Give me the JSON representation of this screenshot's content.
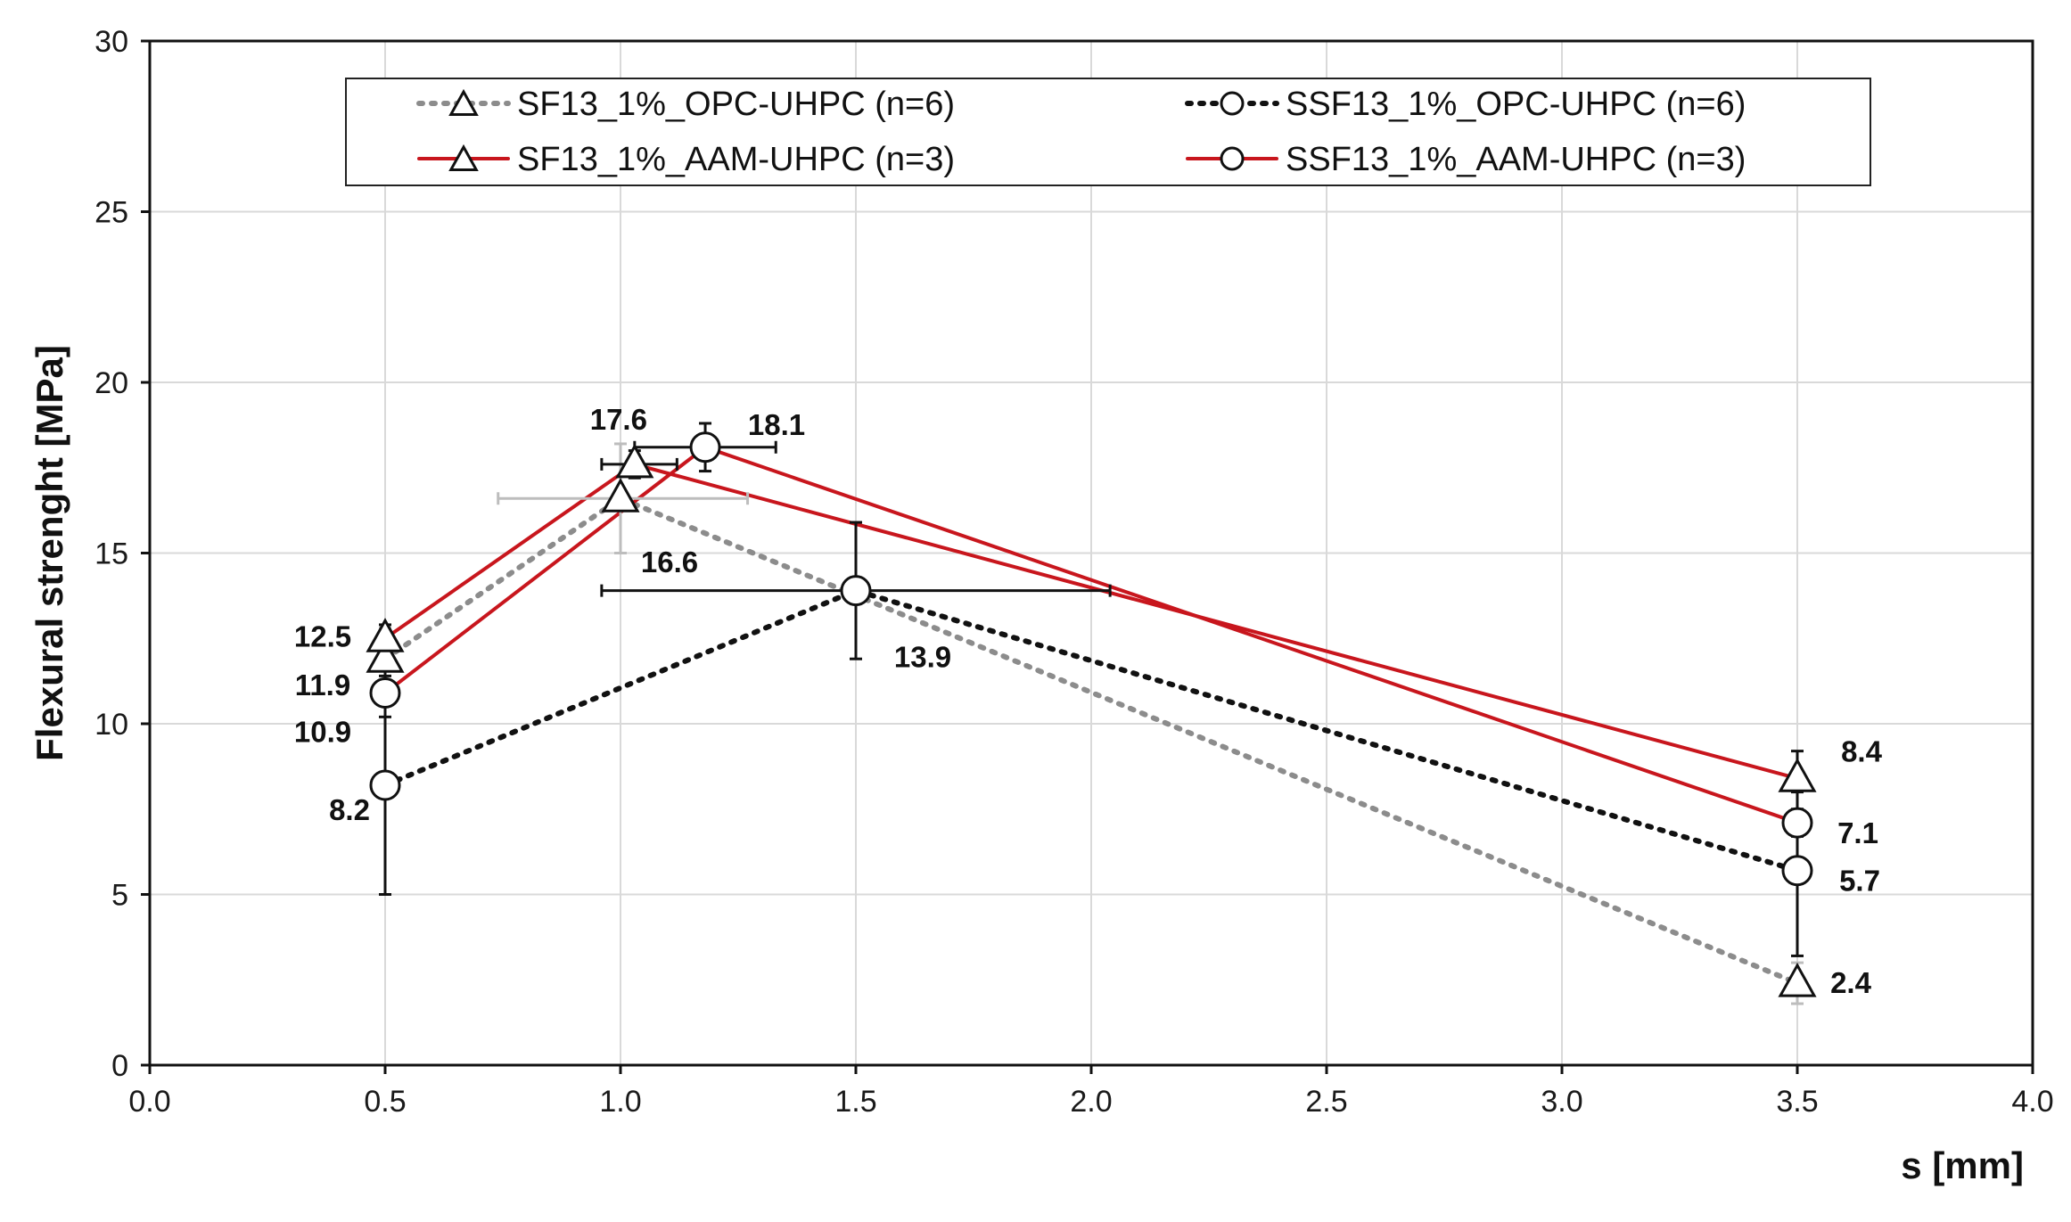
{
  "chart_data": {
    "type": "line",
    "title": "",
    "xlabel": "s [mm]",
    "ylabel": "Flexural strenght [MPa]",
    "xlim": [
      0.0,
      4.0
    ],
    "ylim": [
      0,
      30
    ],
    "x_ticks": [
      "0.0",
      "0.5",
      "1.0",
      "1.5",
      "2.0",
      "2.5",
      "3.0",
      "3.5",
      "4.0"
    ],
    "y_ticks": [
      "0",
      "5",
      "10",
      "15",
      "20",
      "25",
      "30"
    ],
    "grid": true,
    "legend_position": "top",
    "colors": {
      "gray": "#8c8c8c",
      "black": "#111111",
      "red": "#c8161d",
      "errorbar_gray": "#bdbdbd"
    },
    "series": [
      {
        "name": "SF13_1%_OPC-UHPC (n=6)",
        "marker": "triangle",
        "line_style": "dotted",
        "color": "#8c8c8c",
        "points": [
          {
            "x": 0.5,
            "y": 11.9,
            "label": "11.9",
            "yerr": [
              11.0,
              12.8
            ],
            "xerr": null
          },
          {
            "x": 1.0,
            "y": 16.6,
            "label": "16.6",
            "yerr": [
              15.0,
              18.2
            ],
            "xerr": [
              0.74,
              1.27
            ]
          },
          {
            "x": 3.5,
            "y": 2.4,
            "label": "2.4",
            "yerr": [
              1.8,
              3.0
            ],
            "xerr": null
          }
        ]
      },
      {
        "name": "SSF13_1%_OPC-UHPC (n=6)",
        "marker": "circle",
        "line_style": "dotted",
        "color": "#111111",
        "points": [
          {
            "x": 0.5,
            "y": 8.2,
            "label": "8.2",
            "yerr": [
              5.0,
              11.4
            ],
            "xerr": null
          },
          {
            "x": 1.5,
            "y": 13.9,
            "label": "13.9",
            "yerr": [
              11.9,
              15.9
            ],
            "xerr": [
              0.96,
              2.04
            ]
          },
          {
            "x": 3.5,
            "y": 5.7,
            "label": "5.7",
            "yerr": [
              3.2,
              8.2
            ],
            "xerr": null
          }
        ]
      },
      {
        "name": "SF13_1%_AAM-UHPC (n=3)",
        "marker": "triangle",
        "line_style": "solid",
        "color": "#c8161d",
        "points": [
          {
            "x": 0.5,
            "y": 12.5,
            "label": "12.5",
            "yerr": [
              12.1,
              12.9
            ],
            "xerr": null
          },
          {
            "x": 1.03,
            "y": 17.6,
            "label": "17.6",
            "yerr": [
              17.2,
              18.0
            ],
            "xerr": [
              0.96,
              1.12
            ]
          },
          {
            "x": 3.5,
            "y": 8.4,
            "label": "8.4",
            "yerr": [
              8.0,
              9.2
            ],
            "xerr": null
          }
        ]
      },
      {
        "name": "SSF13_1%_AAM-UHPC (n=3)",
        "marker": "circle",
        "line_style": "solid",
        "color": "#c8161d",
        "points": [
          {
            "x": 0.5,
            "y": 10.9,
            "label": "10.9",
            "yerr": [
              10.2,
              11.6
            ],
            "xerr": null
          },
          {
            "x": 1.18,
            "y": 18.1,
            "label": "18.1",
            "yerr": [
              17.4,
              18.8
            ],
            "xerr": [
              1.03,
              1.33
            ]
          },
          {
            "x": 3.5,
            "y": 7.1,
            "label": "7.1",
            "yerr": [
              6.7,
              7.5
            ],
            "xerr": null
          }
        ]
      }
    ],
    "legend": [
      {
        "label": "SF13_1%_OPC-UHPC (n=6)",
        "series": 0
      },
      {
        "label": "SSF13_1%_OPC-UHPC (n=6)",
        "series": 1
      },
      {
        "label": "SF13_1%_AAM-UHPC (n=3)",
        "series": 2
      },
      {
        "label": "SSF13_1%_AAM-UHPC (n=3)",
        "series": 3
      }
    ]
  }
}
